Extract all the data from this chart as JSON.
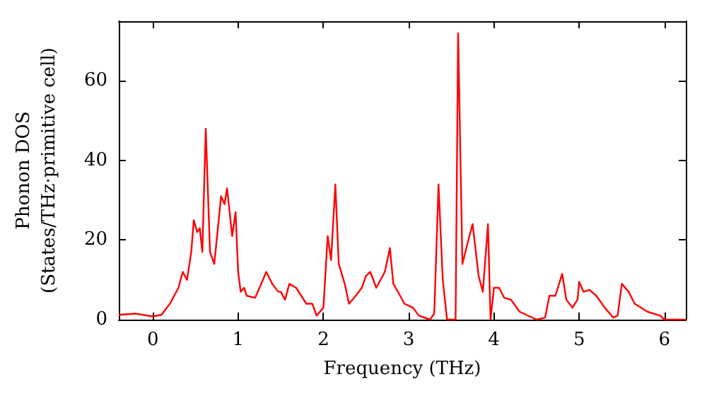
{
  "chart_data": {
    "type": "line",
    "xlabel": "Frequency (THz)",
    "ylabel": "Phonon DOS\n(States/THz·primitive cell)",
    "xlim": [
      -0.4,
      6.25
    ],
    "xticks": [
      0,
      1,
      2,
      3,
      4,
      5,
      6
    ],
    "ylim": [
      0,
      75
    ],
    "yticks": [
      0,
      20,
      40,
      60
    ],
    "grid": false,
    "marker": "none",
    "line_style": "solid",
    "series": [
      {
        "color": "#ff0000",
        "x": [
          -0.4,
          -0.2,
          0,
          0.1,
          0.2,
          0.3,
          0.35,
          0.4,
          0.45,
          0.48,
          0.52,
          0.55,
          0.58,
          0.62,
          0.67,
          0.72,
          0.8,
          0.84,
          0.87,
          0.93,
          0.97,
          1.0,
          1.03,
          1.07,
          1.1,
          1.2,
          1.33,
          1.4,
          1.47,
          1.5,
          1.55,
          1.6,
          1.68,
          1.8,
          1.87,
          1.92,
          2.0,
          2.05,
          2.09,
          2.14,
          2.18,
          2.25,
          2.3,
          2.38,
          2.45,
          2.5,
          2.55,
          2.62,
          2.72,
          2.78,
          2.82,
          2.9,
          2.95,
          3.05,
          3.12,
          3.25,
          3.3,
          3.35,
          3.4,
          3.45,
          3.55,
          3.58,
          3.63,
          3.7,
          3.75,
          3.82,
          3.87,
          3.93,
          3.96,
          4.0,
          4.06,
          4.12,
          4.2,
          4.3,
          4.5,
          4.6,
          4.65,
          4.72,
          4.8,
          4.85,
          4.92,
          4.98,
          5.0,
          5.05,
          5.12,
          5.2,
          5.3,
          5.4,
          5.45,
          5.5,
          5.58,
          5.65,
          5.8,
          5.95,
          6.0,
          6.25
        ],
        "values": [
          1.2,
          1.5,
          0.8,
          1.2,
          4,
          8,
          12,
          10,
          17,
          25,
          22,
          23,
          17,
          48,
          17,
          14,
          31,
          29,
          33,
          21,
          27,
          12,
          7,
          8,
          6,
          5.5,
          12,
          9,
          7,
          7,
          5,
          9,
          8,
          4,
          4,
          1,
          3,
          21,
          15,
          34,
          14,
          9,
          4,
          6,
          8,
          11,
          12,
          8,
          12,
          18,
          9,
          6,
          4,
          3,
          1,
          0,
          1.5,
          34,
          10,
          0,
          0,
          72,
          14,
          20,
          24,
          11,
          7,
          24,
          0,
          8,
          8,
          5.5,
          5,
          2,
          0,
          0.5,
          6,
          6,
          11.5,
          5,
          3,
          5,
          9.5,
          7,
          7.5,
          6,
          3,
          0.5,
          1,
          9,
          7,
          4,
          2,
          1,
          0,
          0
        ]
      }
    ]
  }
}
